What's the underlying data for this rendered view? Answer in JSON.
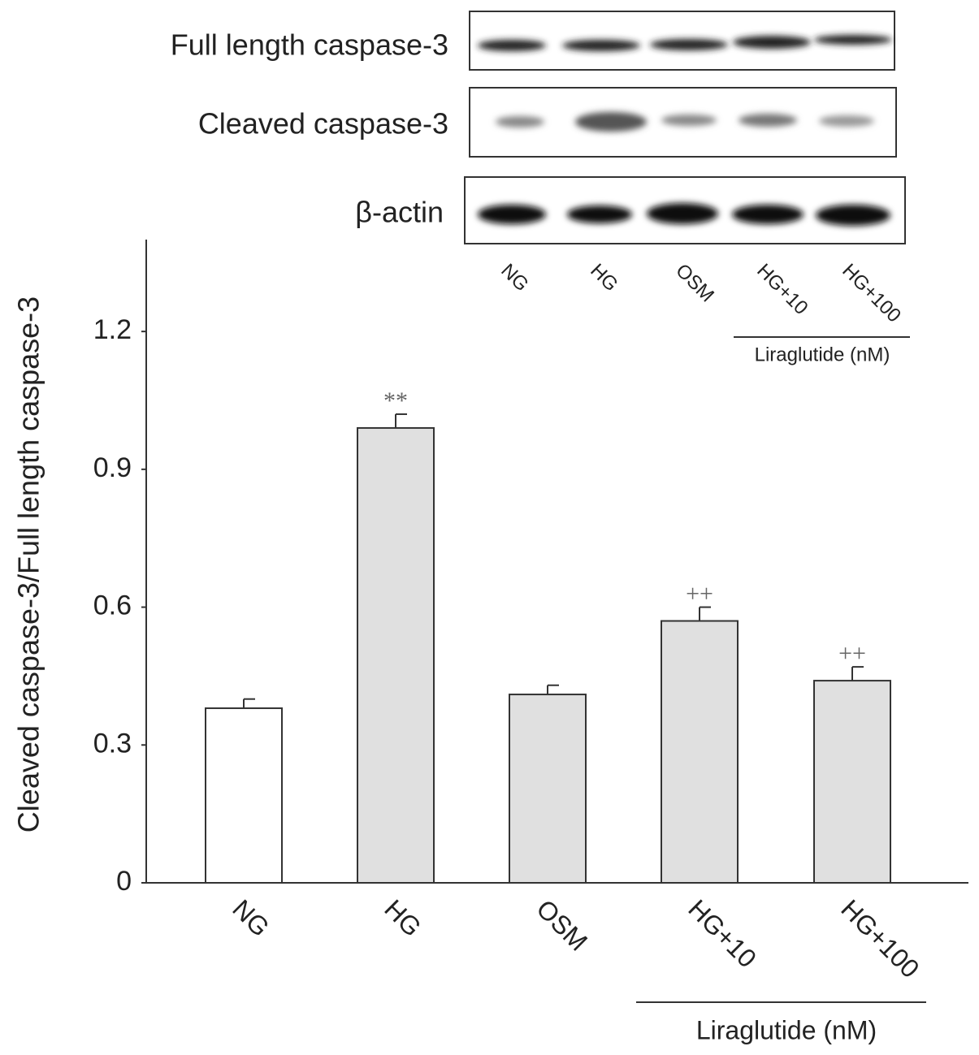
{
  "blot_labels": [
    "Full length caspase-3",
    "Cleaved caspase-3",
    "β-actin"
  ],
  "chart_data": {
    "type": "bar",
    "y_label": "Cleaved caspase-3/Full length caspase-3",
    "categories": [
      "NG",
      "HG",
      "OSM",
      "HG+10",
      "HG+100"
    ],
    "values": [
      0.38,
      0.99,
      0.41,
      0.57,
      0.44
    ],
    "errors": [
      0.02,
      0.03,
      0.02,
      0.03,
      0.03
    ],
    "colors": [
      "#ffffff",
      "#e0e0e0",
      "#e0e0e0",
      "#e0e0e0",
      "#e0e0e0"
    ],
    "annotations": [
      {
        "category": "HG",
        "text": "**"
      },
      {
        "category": "HG+10",
        "text": "++"
      },
      {
        "category": "HG+100",
        "text": "++"
      }
    ],
    "group_label": "Liraglutide (nM)",
    "ylim": [
      0,
      1.4
    ],
    "yticks": [
      0,
      0.3,
      0.6,
      0.9,
      1.2
    ]
  }
}
